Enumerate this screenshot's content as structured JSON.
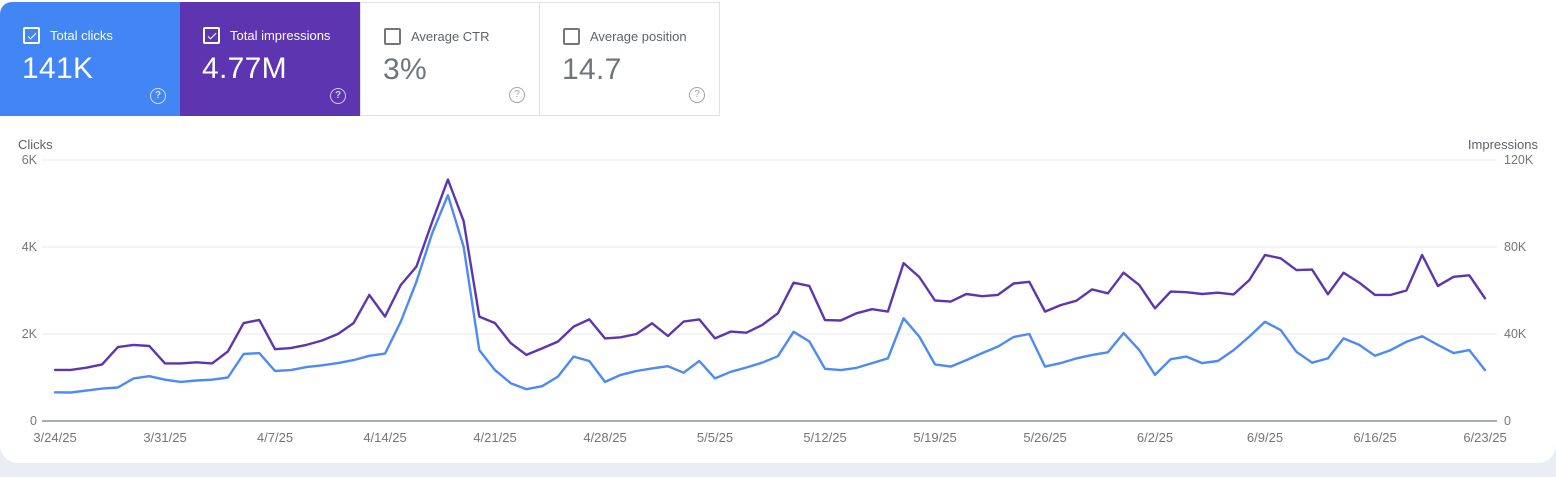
{
  "colors": {
    "page_background": "#e9edf4",
    "panel_background": "#ffffff",
    "clicks_accent": "#4285f4",
    "impressions_accent": "#5e35b1",
    "clicks_line": "#4c8bf5",
    "impressions_line": "#5e35b1",
    "gridline": "#e8eaed",
    "axis_line": "#a8adb3",
    "tick_text": "#757575"
  },
  "icons": {
    "help_glyph": "?",
    "checkmark": "check"
  },
  "metric_cards": [
    {
      "label": "Total clicks",
      "value": "141K",
      "checked": true,
      "bg": "#4285f4",
      "style": "filled"
    },
    {
      "label": "Total impressions",
      "value": "4.77M",
      "checked": true,
      "bg": "#5e35b1",
      "style": "filled"
    },
    {
      "label": "Average CTR",
      "value": "3%",
      "checked": false,
      "bg": "#ffffff",
      "style": "light"
    },
    {
      "label": "Average position",
      "value": "14.7",
      "checked": false,
      "bg": "#ffffff",
      "style": "light"
    }
  ],
  "chart_data": {
    "type": "line",
    "grid": true,
    "legend_position": "none",
    "left_axis": {
      "title": "Clicks",
      "ticks": [
        "0",
        "2K",
        "4K",
        "6K"
      ],
      "tick_values": [
        0,
        2000,
        4000,
        6000
      ],
      "max": 6000
    },
    "right_axis": {
      "title": "Impressions",
      "ticks": [
        "0",
        "40K",
        "80K",
        "120K"
      ],
      "tick_values": [
        0,
        40000,
        80000,
        120000
      ],
      "max": 120000
    },
    "x_tick_labels": [
      "3/24/25",
      "3/31/25",
      "4/7/25",
      "4/14/25",
      "4/21/25",
      "4/28/25",
      "5/5/25",
      "5/12/25",
      "5/19/25",
      "5/26/25",
      "6/2/25",
      "6/9/25",
      "6/16/25",
      "6/23/25"
    ],
    "dates": [
      "3/24",
      "3/25",
      "3/26",
      "3/27",
      "3/28",
      "3/29",
      "3/30",
      "3/31",
      "4/1",
      "4/2",
      "4/3",
      "4/4",
      "4/5",
      "4/6",
      "4/7",
      "4/8",
      "4/9",
      "4/10",
      "4/11",
      "4/12",
      "4/13",
      "4/14",
      "4/15",
      "4/16",
      "4/17",
      "4/18",
      "4/19",
      "4/20",
      "4/21",
      "4/22",
      "4/23",
      "4/24",
      "4/25",
      "4/26",
      "4/27",
      "4/28",
      "4/29",
      "4/30",
      "5/1",
      "5/2",
      "5/3",
      "5/4",
      "5/5",
      "5/6",
      "5/7",
      "5/8",
      "5/9",
      "5/10",
      "5/11",
      "5/12",
      "5/13",
      "5/14",
      "5/15",
      "5/16",
      "5/17",
      "5/18",
      "5/19",
      "5/20",
      "5/21",
      "5/22",
      "5/23",
      "5/24",
      "5/25",
      "5/26",
      "5/27",
      "5/28",
      "5/29",
      "5/30",
      "5/31",
      "6/1",
      "6/2",
      "6/3",
      "6/4",
      "6/5",
      "6/6",
      "6/7",
      "6/8",
      "6/9",
      "6/10",
      "6/11",
      "6/12",
      "6/13",
      "6/14",
      "6/15",
      "6/16",
      "6/17",
      "6/18",
      "6/19",
      "6/20",
      "6/21",
      "6/22",
      "6/23"
    ],
    "series": [
      {
        "name": "Clicks",
        "axis": "left",
        "color": "#4c8bf5",
        "values": [
          660,
          655,
          700,
          745,
          770,
          980,
          1030,
          950,
          900,
          930,
          950,
          1000,
          1540,
          1560,
          1150,
          1170,
          1240,
          1280,
          1330,
          1400,
          1500,
          1550,
          2280,
          3200,
          4310,
          5190,
          4010,
          1630,
          1170,
          870,
          730,
          800,
          1020,
          1480,
          1380,
          900,
          1060,
          1150,
          1210,
          1260,
          1110,
          1380,
          980,
          1130,
          1230,
          1340,
          1490,
          2050,
          1830,
          1200,
          1170,
          1220,
          1330,
          1440,
          2360,
          1940,
          1300,
          1250,
          1400,
          1560,
          1710,
          1930,
          2000,
          1250,
          1330,
          1440,
          1520,
          1580,
          2020,
          1630,
          1060,
          1420,
          1480,
          1330,
          1380,
          1630,
          1940,
          2280,
          2090,
          1590,
          1340,
          1440,
          1900,
          1750,
          1500,
          1630,
          1820,
          1950,
          1750,
          1560,
          1630,
          1170
        ]
      },
      {
        "name": "Impressions",
        "axis": "right",
        "color": "#5e35b1",
        "values": [
          23500,
          23500,
          24500,
          26000,
          34000,
          35000,
          34500,
          26500,
          26500,
          27000,
          26500,
          32000,
          45000,
          46500,
          33000,
          33500,
          35000,
          37000,
          40000,
          45000,
          58000,
          48000,
          62500,
          71000,
          91500,
          111000,
          92000,
          48000,
          45000,
          35800,
          30400,
          33400,
          36500,
          43400,
          46700,
          38000,
          38500,
          40000,
          44900,
          39100,
          45700,
          46700,
          38000,
          41100,
          40600,
          44100,
          49500,
          63600,
          62100,
          46400,
          46200,
          49500,
          51400,
          50300,
          72600,
          66200,
          55400,
          54900,
          58400,
          57400,
          58000,
          63200,
          64000,
          50300,
          53300,
          55300,
          60500,
          58700,
          68200,
          62500,
          51800,
          59500,
          59200,
          58400,
          59000,
          58200,
          64800,
          76300,
          74800,
          69400,
          69600,
          58300,
          68200,
          63600,
          58000,
          58000,
          60000,
          76300,
          62100,
          66300,
          67000,
          56400
        ]
      }
    ]
  }
}
